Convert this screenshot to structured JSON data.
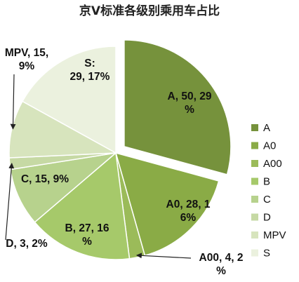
{
  "chart_data": {
    "type": "pie",
    "title": "京V标准各级别乘用车占比",
    "categories": [
      "A",
      "A0",
      "A00",
      "B",
      "C",
      "D",
      "MPV",
      "S"
    ],
    "values": [
      50,
      28,
      4,
      27,
      15,
      3,
      15,
      29
    ],
    "percents": [
      29,
      16,
      2,
      16,
      9,
      2,
      9,
      17
    ],
    "colors": [
      "#76923c",
      "#8aab46",
      "#9bbb59",
      "#a6c96a",
      "#b7d28d",
      "#c6d9a4",
      "#d7e4bd",
      "#ebf1de"
    ],
    "data_labels": [
      [
        "A, 50, 29",
        "%"
      ],
      [
        "A0, 28, 1",
        "6%"
      ],
      [
        "A00, 4, 2",
        "%"
      ],
      [
        "B, 27, 16",
        "%"
      ],
      [
        "C, 15, 9%"
      ],
      [
        "D, 3, 2%"
      ],
      [
        "MPV, 15,",
        "9%"
      ],
      [
        "S:",
        "29, 17%"
      ]
    ],
    "legend_position": "right",
    "exploded": "A"
  }
}
